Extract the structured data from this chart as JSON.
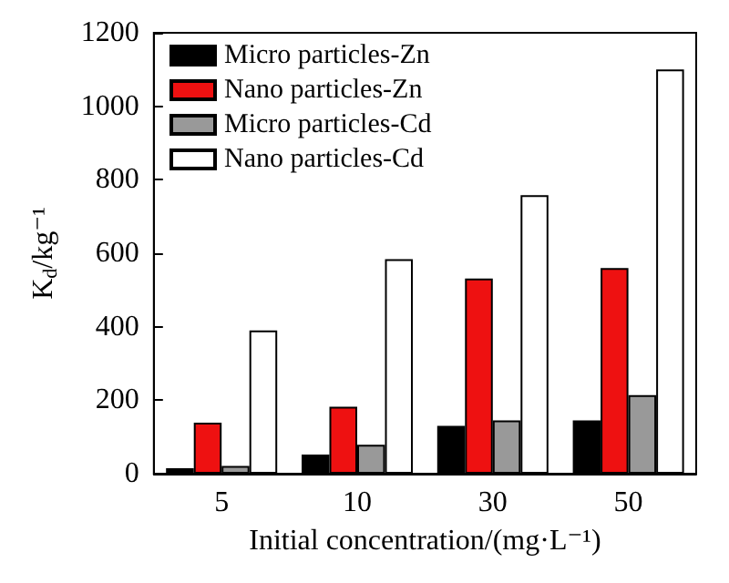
{
  "chart_data": {
    "type": "bar",
    "xlabel": "Initial concentration/(mg·L⁻¹)",
    "ylabel": "K$_{d}$/kg⁻¹",
    "categories": [
      "5",
      "10",
      "30",
      "50"
    ],
    "series": [
      {
        "name": "Micro particles-Zn",
        "color": "#000000",
        "values": [
          15,
          52,
          130,
          145
        ]
      },
      {
        "name": "Nano particles-Zn",
        "color": "#ee1111",
        "values": [
          139,
          182,
          531,
          560
        ]
      },
      {
        "name": "Micro particles-Cd",
        "color": "#999999",
        "values": [
          21,
          79,
          145,
          214
        ]
      },
      {
        "name": "Nano particles-Cd",
        "color": "#ffffff",
        "values": [
          390,
          584,
          758,
          1100
        ]
      }
    ],
    "ylim": [
      0,
      1200
    ],
    "yticks": [
      0,
      200,
      400,
      600,
      800,
      1000,
      1200
    ],
    "grid": false,
    "legend": "top left"
  }
}
